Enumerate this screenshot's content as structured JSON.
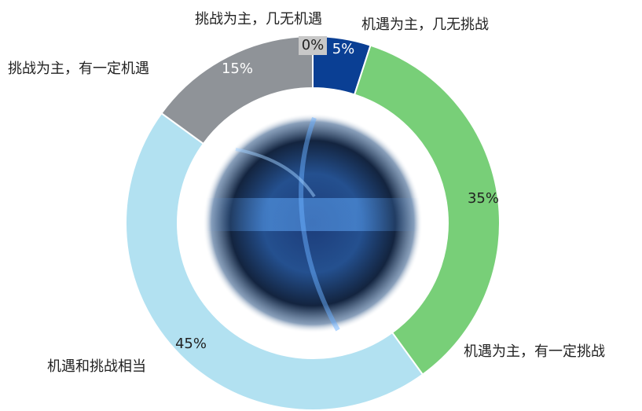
{
  "chart_data": {
    "type": "pie",
    "donut": true,
    "categories": [
      "机遇为主，几无挑战",
      "机遇为主，有一定挑战",
      "机遇和挑战相当",
      "挑战为主，有一定机遇",
      "挑战为主，几无机遇"
    ],
    "values": [
      5,
      35,
      45,
      15,
      0
    ],
    "value_labels": [
      "5%",
      "35%",
      "45%",
      "15%",
      "0%"
    ],
    "colors": [
      "#0a3f94",
      "#78cf78",
      "#b2e1f1",
      "#8f9398",
      "#c8c8c8"
    ]
  }
}
